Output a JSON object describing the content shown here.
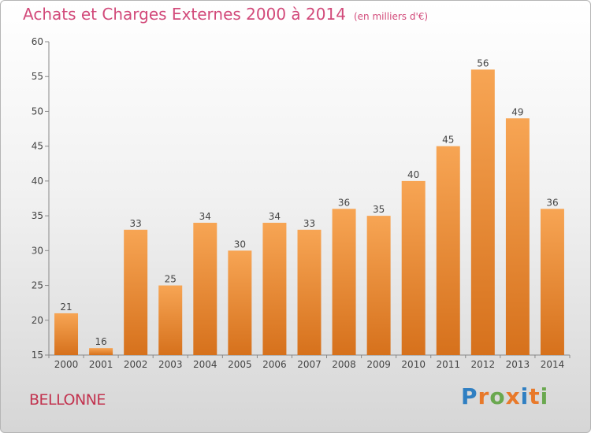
{
  "title": "Achats et Charges Externes 2000 à 2014",
  "unit_label": "(en milliers d'€)",
  "location": "BELLONNE",
  "logo": {
    "text": "Proxiti",
    "colors": [
      "#2f7fc2",
      "#e8792a",
      "#6aa84f",
      "#e8792a",
      "#2f7fc2",
      "#e8792a",
      "#6aa84f"
    ]
  },
  "colors": {
    "title": "#d24a7a",
    "bar_light": "#f7a554",
    "bar_dark": "#d6711c",
    "text": "#444444"
  },
  "chart_data": {
    "type": "bar",
    "title": "Achats et Charges Externes 2000 à 2014",
    "subtitle": "(en milliers d'€)",
    "categories": [
      "2000",
      "2001",
      "2002",
      "2003",
      "2004",
      "2005",
      "2006",
      "2007",
      "2008",
      "2009",
      "2010",
      "2011",
      "2012",
      "2013",
      "2014"
    ],
    "values": [
      21,
      16,
      33,
      25,
      34,
      30,
      34,
      33,
      36,
      35,
      40,
      45,
      56,
      49,
      36
    ],
    "ylim": [
      15,
      60
    ],
    "yticks": [
      15,
      20,
      25,
      30,
      35,
      40,
      45,
      50,
      55,
      60
    ],
    "grid": false,
    "data_labels": true
  }
}
